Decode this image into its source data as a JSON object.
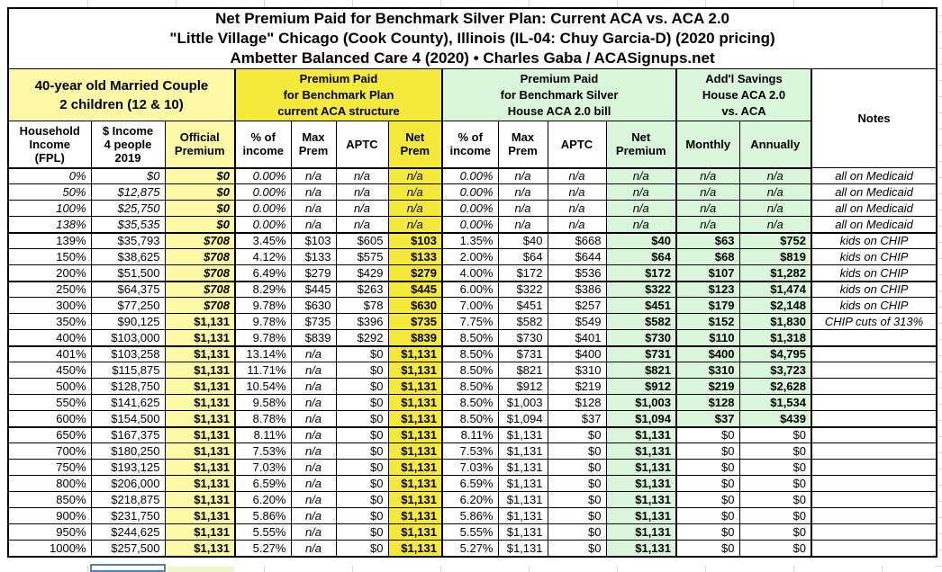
{
  "title": {
    "line1": "Net Premium Paid for Benchmark Silver Plan: Current ACA vs. ACA 2.0",
    "line2": "\"Little Village\" Chicago (Cook County), Illinois (IL-04: Chuy Garcia-D) (2020 pricing)",
    "line3": "Ambetter Balanced Care 4 (2020) • Charles Gaba / ACASignups.net"
  },
  "sections": {
    "household": "40-year old Married Couple\n2 children (12 & 10)",
    "aca": "Premium Paid\nfor Benchmark Plan\ncurrent ACA structure",
    "aca2": "Premium Paid\nfor Benchmark Silver\nHouse ACA 2.0 bill",
    "savings": "Add'l Savings\nHouse ACA 2.0\nvs. ACA",
    "notes": "Notes"
  },
  "column_headers": [
    "Household\nIncome\n(FPL)",
    "$ Income\n4 people\n2019",
    "Official\nPremium",
    "% of\nincome",
    "Max\nPrem",
    "APTC",
    "Net\nPrem",
    "% of\nincome",
    "Max\nPrem",
    "APTC",
    "Net\nPremium",
    "Monthly",
    "Annually"
  ],
  "colors": {
    "bright_yellow": "#f5e93c",
    "light_yellow": "#fcf8a5",
    "light_green": "#d9f5da",
    "selection_blue": "#4f81bd"
  },
  "rows": [
    {
      "cells": [
        "0%",
        "$0",
        "$0",
        "0.00%",
        "n/a",
        "n/a",
        "n/a",
        "0.00%",
        "n/a",
        "n/a",
        "n/a",
        "n/a",
        "n/a",
        "all on Medicaid"
      ],
      "medicaid": true,
      "official_italic": true,
      "thick_bottom": false
    },
    {
      "cells": [
        "50%",
        "$12,875",
        "$0",
        "0.00%",
        "n/a",
        "n/a",
        "n/a",
        "0.00%",
        "n/a",
        "n/a",
        "n/a",
        "n/a",
        "n/a",
        "all on Medicaid"
      ],
      "medicaid": true,
      "official_italic": true,
      "thick_bottom": false
    },
    {
      "cells": [
        "100%",
        "$25,750",
        "$0",
        "0.00%",
        "n/a",
        "n/a",
        "n/a",
        "0.00%",
        "n/a",
        "n/a",
        "n/a",
        "n/a",
        "n/a",
        "all on Medicaid"
      ],
      "medicaid": true,
      "official_italic": true,
      "thick_bottom": false
    },
    {
      "cells": [
        "138%",
        "$35,535",
        "$0",
        "0.00%",
        "n/a",
        "n/a",
        "n/a",
        "0.00%",
        "n/a",
        "n/a",
        "n/a",
        "n/a",
        "n/a",
        "all on Medicaid"
      ],
      "medicaid": true,
      "official_italic": true,
      "thick_bottom": true
    },
    {
      "cells": [
        "139%",
        "$35,793",
        "$708",
        "3.45%",
        "$103",
        "$605",
        "$103",
        "1.35%",
        "$40",
        "$668",
        "$40",
        "$63",
        "$752",
        "kids on CHIP"
      ],
      "medicaid": false,
      "official_italic": true,
      "thick_bottom": false
    },
    {
      "cells": [
        "150%",
        "$38,625",
        "$708",
        "4.12%",
        "$133",
        "$575",
        "$133",
        "2.00%",
        "$64",
        "$644",
        "$64",
        "$68",
        "$819",
        "kids on CHIP"
      ],
      "medicaid": false,
      "official_italic": true,
      "thick_bottom": false
    },
    {
      "cells": [
        "200%",
        "$51,500",
        "$708",
        "6.49%",
        "$279",
        "$429",
        "$279",
        "4.00%",
        "$172",
        "$536",
        "$172",
        "$107",
        "$1,282",
        "kids on CHIP"
      ],
      "medicaid": false,
      "official_italic": true,
      "thick_bottom": true
    },
    {
      "cells": [
        "250%",
        "$64,375",
        "$708",
        "8.29%",
        "$445",
        "$263",
        "$445",
        "6.00%",
        "$322",
        "$386",
        "$322",
        "$123",
        "$1,474",
        "kids on CHIP"
      ],
      "medicaid": false,
      "official_italic": true,
      "thick_bottom": false
    },
    {
      "cells": [
        "300%",
        "$77,250",
        "$708",
        "9.78%",
        "$630",
        "$78",
        "$630",
        "7.00%",
        "$451",
        "$257",
        "$451",
        "$179",
        "$2,148",
        "kids on CHIP"
      ],
      "medicaid": false,
      "official_italic": true,
      "thick_bottom": false
    },
    {
      "cells": [
        "350%",
        "$90,125",
        "$1,131",
        "9.78%",
        "$735",
        "$396",
        "$735",
        "7.75%",
        "$582",
        "$549",
        "$582",
        "$152",
        "$1,830",
        "CHIP cuts of 313%"
      ],
      "medicaid": false,
      "official_italic": false,
      "thick_bottom": false
    },
    {
      "cells": [
        "400%",
        "$103,000",
        "$1,131",
        "9.78%",
        "$839",
        "$292",
        "$839",
        "8.50%",
        "$730",
        "$401",
        "$730",
        "$110",
        "$1,318",
        ""
      ],
      "medicaid": false,
      "official_italic": false,
      "thick_bottom": true
    },
    {
      "cells": [
        "401%",
        "$103,258",
        "$1,131",
        "13.14%",
        "n/a",
        "$0",
        "$1,131",
        "8.50%",
        "$731",
        "$400",
        "$731",
        "$400",
        "$4,795",
        ""
      ],
      "medicaid": false,
      "official_italic": false,
      "thick_bottom": false
    },
    {
      "cells": [
        "450%",
        "$115,875",
        "$1,131",
        "11.71%",
        "n/a",
        "$0",
        "$1,131",
        "8.50%",
        "$821",
        "$310",
        "$821",
        "$310",
        "$3,723",
        ""
      ],
      "medicaid": false,
      "official_italic": false,
      "thick_bottom": false
    },
    {
      "cells": [
        "500%",
        "$128,750",
        "$1,131",
        "10.54%",
        "n/a",
        "$0",
        "$1,131",
        "8.50%",
        "$912",
        "$219",
        "$912",
        "$219",
        "$2,628",
        ""
      ],
      "medicaid": false,
      "official_italic": false,
      "thick_bottom": false
    },
    {
      "cells": [
        "550%",
        "$141,625",
        "$1,131",
        "9.58%",
        "n/a",
        "$0",
        "$1,131",
        "8.50%",
        "$1,003",
        "$128",
        "$1,003",
        "$128",
        "$1,534",
        ""
      ],
      "medicaid": false,
      "official_italic": false,
      "thick_bottom": false
    },
    {
      "cells": [
        "600%",
        "$154,500",
        "$1,131",
        "8.78%",
        "n/a",
        "$0",
        "$1,131",
        "8.50%",
        "$1,094",
        "$37",
        "$1,094",
        "$37",
        "$439",
        ""
      ],
      "medicaid": false,
      "official_italic": false,
      "thick_bottom": true
    },
    {
      "cells": [
        "650%",
        "$167,375",
        "$1,131",
        "8.11%",
        "n/a",
        "$0",
        "$1,131",
        "8.11%",
        "$1,131",
        "$0",
        "$1,131",
        "$0",
        "$0",
        ""
      ],
      "medicaid": false,
      "official_italic": false,
      "thick_bottom": false
    },
    {
      "cells": [
        "700%",
        "$180,250",
        "$1,131",
        "7.53%",
        "n/a",
        "$0",
        "$1,131",
        "7.53%",
        "$1,131",
        "$0",
        "$1,131",
        "$0",
        "$0",
        ""
      ],
      "medicaid": false,
      "official_italic": false,
      "thick_bottom": false
    },
    {
      "cells": [
        "750%",
        "$193,125",
        "$1,131",
        "7.03%",
        "n/a",
        "$0",
        "$1,131",
        "7.03%",
        "$1,131",
        "$0",
        "$1,131",
        "$0",
        "$0",
        ""
      ],
      "medicaid": false,
      "official_italic": false,
      "thick_bottom": false
    },
    {
      "cells": [
        "800%",
        "$206,000",
        "$1,131",
        "6.59%",
        "n/a",
        "$0",
        "$1,131",
        "6.59%",
        "$1,131",
        "$0",
        "$1,131",
        "$0",
        "$0",
        ""
      ],
      "medicaid": false,
      "official_italic": false,
      "thick_bottom": false
    },
    {
      "cells": [
        "850%",
        "$218,875",
        "$1,131",
        "6.20%",
        "n/a",
        "$0",
        "$1,131",
        "6.20%",
        "$1,131",
        "$0",
        "$1,131",
        "$0",
        "$0",
        ""
      ],
      "medicaid": false,
      "official_italic": false,
      "thick_bottom": false
    },
    {
      "cells": [
        "900%",
        "$231,750",
        "$1,131",
        "5.86%",
        "n/a",
        "$0",
        "$1,131",
        "5.86%",
        "$1,131",
        "$0",
        "$1,131",
        "$0",
        "$0",
        ""
      ],
      "medicaid": false,
      "official_italic": false,
      "thick_bottom": false
    },
    {
      "cells": [
        "950%",
        "$244,625",
        "$1,131",
        "5.55%",
        "n/a",
        "$0",
        "$1,131",
        "5.55%",
        "$1,131",
        "$0",
        "$1,131",
        "$0",
        "$0",
        ""
      ],
      "medicaid": false,
      "official_italic": false,
      "thick_bottom": false
    },
    {
      "cells": [
        "1000%",
        "$257,500",
        "$1,131",
        "5.27%",
        "n/a",
        "$0",
        "$1,131",
        "5.27%",
        "$1,131",
        "$0",
        "$1,131",
        "$0",
        "$0",
        ""
      ],
      "medicaid": false,
      "official_italic": false,
      "thick_bottom": false
    }
  ]
}
